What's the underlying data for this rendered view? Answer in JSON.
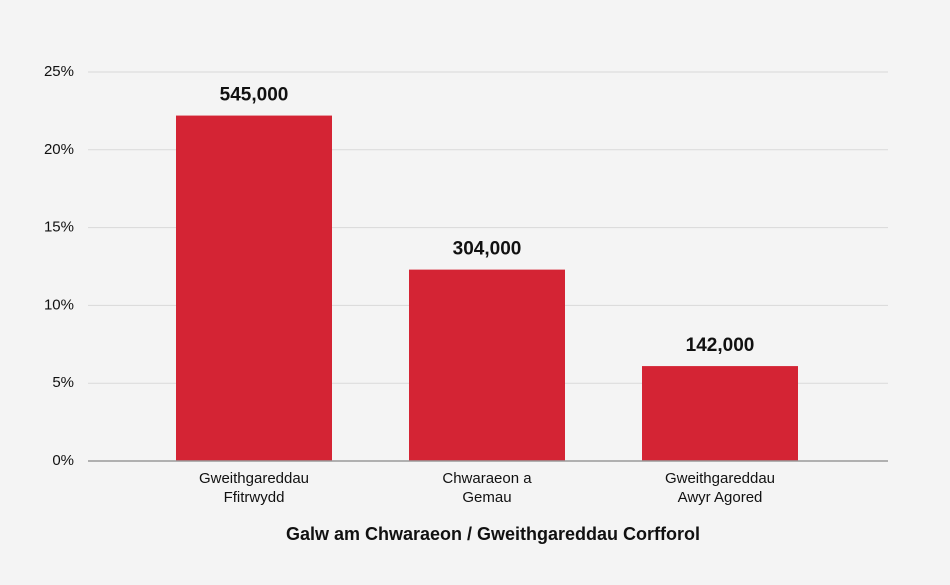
{
  "chart_data": {
    "type": "bar",
    "categories": [
      "Gweithgareddau\nFfitrwydd",
      "Chwaraeon a\nGemau",
      "Gweithgareddau\nAwyr Agored"
    ],
    "values": [
      22.2,
      12.3,
      6.1
    ],
    "bar_labels": [
      "545,000",
      "304,000",
      "142,000"
    ],
    "color": "#d42434",
    "x_label": "Galw am Chwaraeon / Gweithgareddau Corfforol",
    "ylim": [
      0,
      25
    ],
    "yticks": [
      {
        "value": 0,
        "label": "0%"
      },
      {
        "value": 5,
        "label": "5%"
      },
      {
        "value": 10,
        "label": "10%"
      },
      {
        "value": 15,
        "label": "15%"
      },
      {
        "value": 20,
        "label": "20%"
      },
      {
        "value": 25,
        "label": "25%"
      }
    ],
    "grid": true
  }
}
